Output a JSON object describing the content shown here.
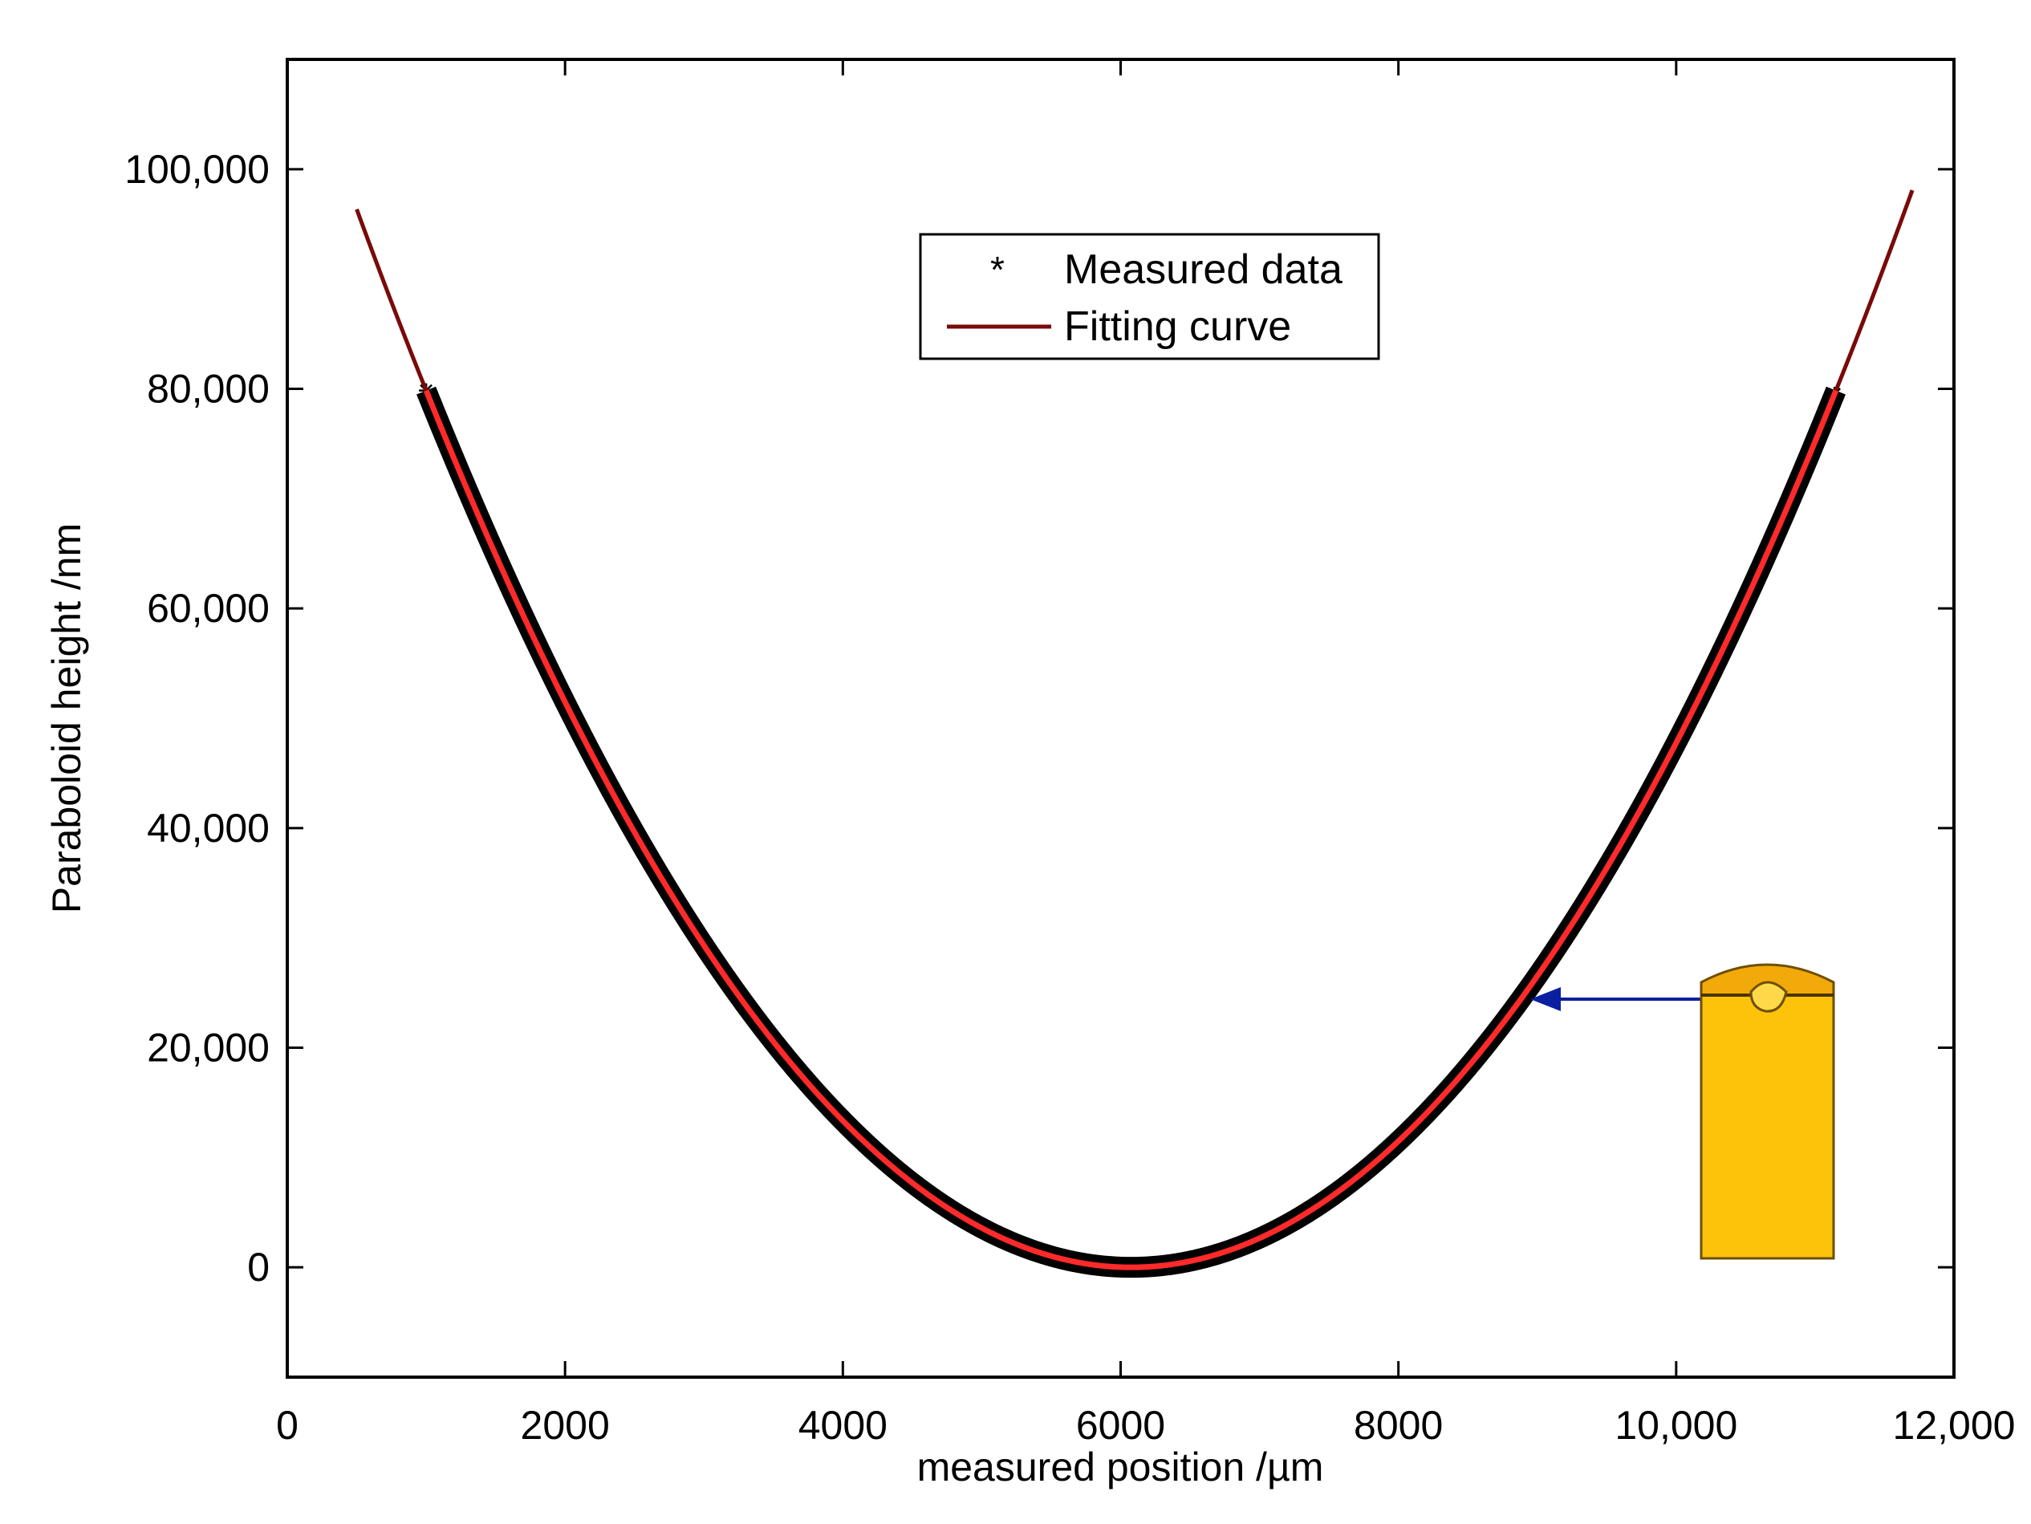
{
  "chart_data": {
    "type": "line",
    "title": "",
    "xlabel": "measured position /µm",
    "ylabel": "Paraboloid height /nm",
    "xlim": [
      0,
      12000
    ],
    "ylim": [
      -10000,
      110000
    ],
    "xticks": [
      0,
      2000,
      4000,
      6000,
      8000,
      10000,
      12000
    ],
    "xtick_labels": [
      "0",
      "2000",
      "4000",
      "6000",
      "8000",
      "10,000",
      "12,000"
    ],
    "yticks": [
      0,
      20000,
      40000,
      60000,
      80000,
      100000
    ],
    "ytick_labels": [
      "0",
      "20,000",
      "40,000",
      "60,000",
      "80,000",
      "100,000"
    ],
    "grid": false,
    "legend_position": "top-center",
    "series": [
      {
        "name": "Measured data",
        "style": "markers",
        "marker": "*",
        "color": "#000000",
        "x_range": [
          1000,
          11150
        ],
        "vertex_x": 6075,
        "coefficient": 0.0031
      },
      {
        "name": "Fitting curve",
        "style": "line",
        "color": "#7a0a0a",
        "inner_color": "#ff2a2a",
        "x_range": [
          500,
          11700
        ],
        "vertex_x": 6075,
        "coefficient": 0.0031
      }
    ],
    "annotation": {
      "type": "arrow",
      "target_x": 9000,
      "target_y": 24000,
      "color": "#0a1fa0",
      "inset": "gold-cylinder-cross-section"
    }
  }
}
